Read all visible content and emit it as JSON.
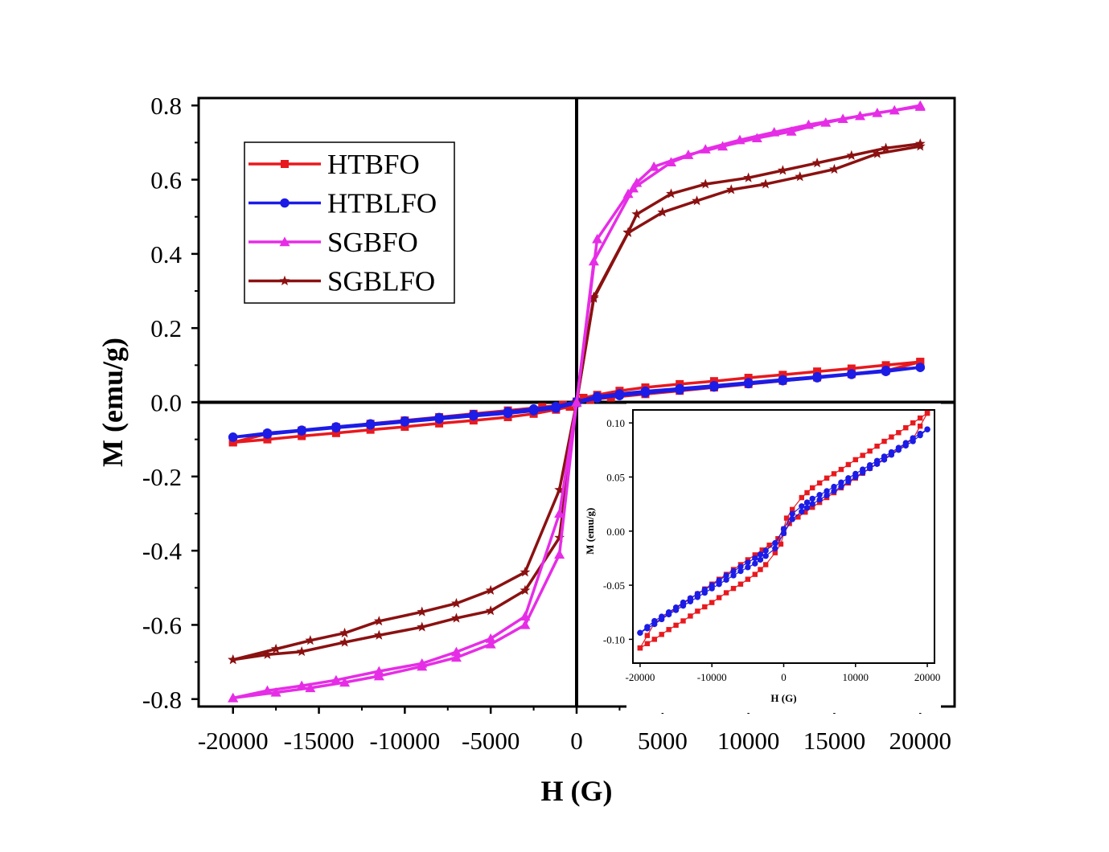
{
  "chart_data": [
    {
      "type": "line",
      "xlabel": "H (G)",
      "ylabel": "M (emu/g)",
      "xlim": [
        -22000,
        22000
      ],
      "ylim": [
        -0.82,
        0.82
      ],
      "xticks": [
        -20000,
        -15000,
        -10000,
        -5000,
        0,
        5000,
        10000,
        15000,
        20000
      ],
      "xtick_labels": [
        "-20000",
        "-15000",
        "-10000",
        "-5000",
        "0",
        "5000",
        "10000",
        "15000",
        "20000"
      ],
      "yticks": [
        0.8,
        0.6,
        0.4,
        0.2,
        0.0,
        -0.2,
        -0.4,
        -0.6,
        -0.8
      ],
      "ytick_labels": [
        "0.8",
        "0.6",
        "0.4",
        "0.2",
        "0.0",
        "-0.2",
        "-0.4",
        "-0.6",
        "-0.8"
      ],
      "legend_position": "top-left",
      "zero_lines": true,
      "series": [
        {
          "name": "HTBFO",
          "color": "#e8191e",
          "marker": "square",
          "upper": [
            [
              20000,
              0.109
            ],
            [
              18000,
              0.1
            ],
            [
              16000,
              0.091
            ],
            [
              14000,
              0.083
            ],
            [
              12000,
              0.074
            ],
            [
              10000,
              0.066
            ],
            [
              8000,
              0.057
            ],
            [
              6000,
              0.049
            ],
            [
              4000,
              0.04
            ],
            [
              2500,
              0.031
            ],
            [
              1200,
              0.02
            ],
            [
              400,
              0.012
            ],
            [
              0,
              0.002
            ],
            [
              -800,
              -0.007
            ],
            [
              -2000,
              -0.013
            ],
            [
              -4000,
              -0.022
            ],
            [
              -6000,
              -0.031
            ],
            [
              -8000,
              -0.04
            ],
            [
              -10000,
              -0.049
            ],
            [
              -12000,
              -0.058
            ],
            [
              -14000,
              -0.067
            ],
            [
              -16000,
              -0.076
            ],
            [
              -18000,
              -0.085
            ],
            [
              -20000,
              -0.108
            ]
          ],
          "lower": [
            [
              -20000,
              -0.108
            ],
            [
              -18000,
              -0.1
            ],
            [
              -16000,
              -0.091
            ],
            [
              -14000,
              -0.083
            ],
            [
              -12000,
              -0.074
            ],
            [
              -10000,
              -0.066
            ],
            [
              -8000,
              -0.057
            ],
            [
              -6000,
              -0.049
            ],
            [
              -4000,
              -0.04
            ],
            [
              -2500,
              -0.031
            ],
            [
              -1200,
              -0.02
            ],
            [
              -400,
              -0.012
            ],
            [
              0,
              -0.002
            ],
            [
              800,
              0.007
            ],
            [
              2000,
              0.013
            ],
            [
              4000,
              0.022
            ],
            [
              6000,
              0.031
            ],
            [
              8000,
              0.04
            ],
            [
              10000,
              0.049
            ],
            [
              12000,
              0.058
            ],
            [
              14000,
              0.067
            ],
            [
              16000,
              0.076
            ],
            [
              18000,
              0.085
            ],
            [
              20000,
              0.109
            ]
          ]
        },
        {
          "name": "HTBLFO",
          "color": "#1c1ce6",
          "marker": "circle",
          "upper": [
            [
              20000,
              0.094
            ],
            [
              18000,
              0.086
            ],
            [
              16000,
              0.077
            ],
            [
              14000,
              0.069
            ],
            [
              12000,
              0.061
            ],
            [
              10000,
              0.053
            ],
            [
              8000,
              0.045
            ],
            [
              6000,
              0.037
            ],
            [
              4000,
              0.03
            ],
            [
              2500,
              0.023
            ],
            [
              1200,
              0.016
            ],
            [
              0,
              0.002
            ],
            [
              -1200,
              -0.011
            ],
            [
              -2500,
              -0.018
            ],
            [
              -4000,
              -0.025
            ],
            [
              -6000,
              -0.033
            ],
            [
              -8000,
              -0.041
            ],
            [
              -10000,
              -0.05
            ],
            [
              -12000,
              -0.058
            ],
            [
              -14000,
              -0.066
            ],
            [
              -16000,
              -0.075
            ],
            [
              -18000,
              -0.083
            ],
            [
              -20000,
              -0.094
            ]
          ],
          "lower": [
            [
              -20000,
              -0.094
            ],
            [
              -18000,
              -0.086
            ],
            [
              -16000,
              -0.077
            ],
            [
              -14000,
              -0.069
            ],
            [
              -12000,
              -0.061
            ],
            [
              -10000,
              -0.053
            ],
            [
              -8000,
              -0.045
            ],
            [
              -6000,
              -0.037
            ],
            [
              -4000,
              -0.03
            ],
            [
              -2500,
              -0.023
            ],
            [
              -1200,
              -0.016
            ],
            [
              0,
              -0.002
            ],
            [
              1200,
              0.011
            ],
            [
              2500,
              0.018
            ],
            [
              4000,
              0.025
            ],
            [
              6000,
              0.033
            ],
            [
              8000,
              0.041
            ],
            [
              10000,
              0.05
            ],
            [
              12000,
              0.058
            ],
            [
              14000,
              0.066
            ],
            [
              16000,
              0.075
            ],
            [
              18000,
              0.083
            ],
            [
              20000,
              0.094
            ]
          ]
        },
        {
          "name": "SGBFO",
          "color": "#e62de6",
          "marker": "triangle",
          "upper": [
            [
              20000,
              0.8
            ],
            [
              18500,
              0.787
            ],
            [
              16500,
              0.772
            ],
            [
              14500,
              0.754
            ],
            [
              12500,
              0.73
            ],
            [
              10500,
              0.712
            ],
            [
              8500,
              0.69
            ],
            [
              6500,
              0.667
            ],
            [
              4500,
              0.635
            ],
            [
              3500,
              0.592
            ],
            [
              3000,
              0.562
            ],
            [
              1200,
              0.44
            ],
            [
              0,
              0.0
            ],
            [
              -1000,
              -0.41
            ],
            [
              -3000,
              -0.6
            ],
            [
              -5000,
              -0.652
            ],
            [
              -7000,
              -0.688
            ],
            [
              -9000,
              -0.712
            ],
            [
              -11500,
              -0.738
            ],
            [
              -13500,
              -0.755
            ],
            [
              -15500,
              -0.77
            ],
            [
              -17500,
              -0.782
            ],
            [
              -20000,
              -0.797
            ]
          ],
          "lower": [
            [
              -20000,
              -0.797
            ],
            [
              -18000,
              -0.777
            ],
            [
              -16000,
              -0.764
            ],
            [
              -14000,
              -0.749
            ],
            [
              -11500,
              -0.725
            ],
            [
              -9000,
              -0.704
            ],
            [
              -7000,
              -0.673
            ],
            [
              -5000,
              -0.637
            ],
            [
              -3000,
              -0.577
            ],
            [
              -1000,
              -0.3
            ],
            [
              0,
              0.0
            ],
            [
              1000,
              0.38
            ],
            [
              3300,
              0.577
            ],
            [
              5500,
              0.647
            ],
            [
              7500,
              0.682
            ],
            [
              9500,
              0.707
            ],
            [
              11500,
              0.728
            ],
            [
              13500,
              0.748
            ],
            [
              15500,
              0.764
            ],
            [
              17500,
              0.78
            ],
            [
              20000,
              0.797
            ]
          ]
        },
        {
          "name": "SGBLFO",
          "color": "#8b1111",
          "marker": "star",
          "upper": [
            [
              20000,
              0.697
            ],
            [
              18000,
              0.685
            ],
            [
              16000,
              0.665
            ],
            [
              14000,
              0.645
            ],
            [
              12000,
              0.625
            ],
            [
              10000,
              0.605
            ],
            [
              7500,
              0.588
            ],
            [
              5500,
              0.562
            ],
            [
              3500,
              0.507
            ],
            [
              3000,
              0.458
            ],
            [
              1000,
              0.284
            ],
            [
              0,
              0.0
            ],
            [
              -1000,
              -0.236
            ],
            [
              -3000,
              -0.458
            ],
            [
              -5000,
              -0.507
            ],
            [
              -7000,
              -0.542
            ],
            [
              -9000,
              -0.565
            ],
            [
              -11500,
              -0.59
            ],
            [
              -13500,
              -0.622
            ],
            [
              -15500,
              -0.642
            ],
            [
              -17500,
              -0.665
            ],
            [
              -20000,
              -0.694
            ]
          ],
          "lower": [
            [
              -20000,
              -0.694
            ],
            [
              -18000,
              -0.68
            ],
            [
              -16000,
              -0.672
            ],
            [
              -13500,
              -0.647
            ],
            [
              -11500,
              -0.628
            ],
            [
              -9000,
              -0.606
            ],
            [
              -7000,
              -0.582
            ],
            [
              -5000,
              -0.562
            ],
            [
              -3000,
              -0.507
            ],
            [
              -1000,
              -0.365
            ],
            [
              0,
              0.0
            ],
            [
              1000,
              0.28
            ],
            [
              3000,
              0.457
            ],
            [
              5000,
              0.512
            ],
            [
              7000,
              0.543
            ],
            [
              9000,
              0.573
            ],
            [
              11000,
              0.588
            ],
            [
              13000,
              0.608
            ],
            [
              15000,
              0.628
            ],
            [
              17500,
              0.67
            ],
            [
              20000,
              0.69
            ]
          ]
        }
      ]
    },
    {
      "type": "line",
      "inset": true,
      "xlabel": "H (G)",
      "ylabel": "M (emu/g)",
      "xlim": [
        -21000,
        21000
      ],
      "ylim": [
        -0.122,
        0.112
      ],
      "xticks": [
        -20000,
        -10000,
        0,
        10000,
        20000
      ],
      "xtick_labels": [
        "-20000",
        "-10000",
        "0",
        "10000",
        "20000"
      ],
      "yticks": [
        0.1,
        0.05,
        0.0,
        -0.05,
        -0.1
      ],
      "ytick_labels": [
        "0.10",
        "0.05",
        "0.00",
        "-0.05",
        "-0.10"
      ],
      "series": [
        {
          "name": "HTBFO",
          "color": "#e8191e",
          "marker": "square"
        },
        {
          "name": "HTBLFO",
          "color": "#1c1ce6",
          "marker": "circle"
        }
      ]
    }
  ]
}
